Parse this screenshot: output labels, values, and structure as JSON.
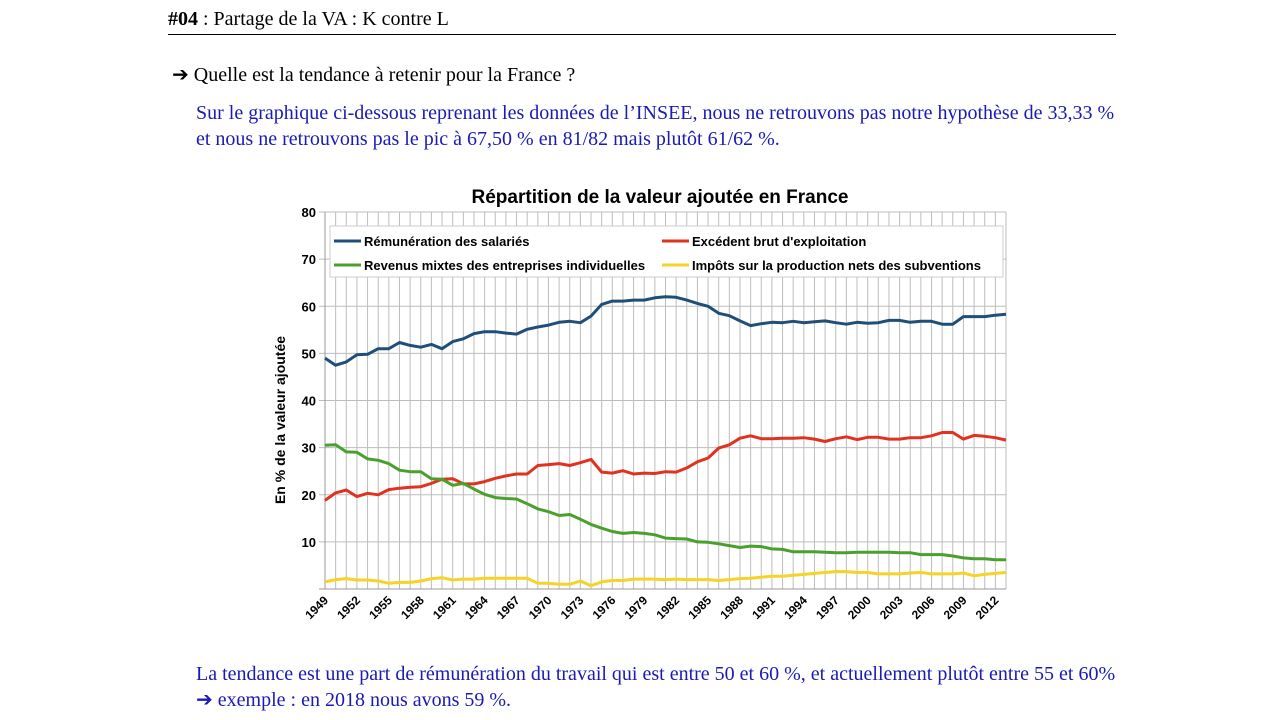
{
  "header": {
    "number": "#04",
    "title": " : Partage de la VA : K contre L"
  },
  "question": {
    "arrow": "➔",
    "text": " Quelle est la tendance à retenir pour la France ?"
  },
  "paragraph1": "Sur le graphique ci-dessous reprenant les données de l’INSEE, nous ne retrouvons pas notre hypothèse de 33,33 % et nous ne retrouvons pas le pic à 67,50 % en 81/82 mais plutôt 61/62 %.",
  "paragraph2": {
    "before": "La tendance est une part de rémunération du travail qui est entre 50 et 60 %, et actuellement plutôt entre 55 et 60% ",
    "arrow": "➔",
    "after": " exemple : en 2018 nous avons 59 %."
  },
  "chart_data": {
    "type": "line",
    "title": "Répartition de la valeur ajoutée en France",
    "xlabel": "",
    "ylabel": "En % de la valeur ajoutée",
    "ylim": [
      0,
      80
    ],
    "yticks": [
      "10",
      "20",
      "30",
      "40",
      "50",
      "60",
      "70",
      "80"
    ],
    "x_start": 1949,
    "x_end": 2013,
    "xtick_labels": [
      "1949",
      "1952",
      "1955",
      "1958",
      "1961",
      "1964",
      "1967",
      "1970",
      "1973",
      "1976",
      "1979",
      "1982",
      "1985",
      "1988",
      "1991",
      "1994",
      "1997",
      "2000",
      "2003",
      "2006",
      "2009",
      "2012"
    ],
    "grid": true,
    "legend_placement": "top",
    "series": [
      {
        "name": "Rémunération des salariés",
        "color": "#1f4e79",
        "values": [
          49,
          47.5,
          48.2,
          49.7,
          49.8,
          51,
          51,
          52.3,
          51.7,
          51.3,
          51.9,
          51,
          52.5,
          53.1,
          54.2,
          54.6,
          54.6,
          54.3,
          54.1,
          55.1,
          55.6,
          56,
          56.6,
          56.8,
          56.5,
          57.9,
          60.4,
          61.1,
          61.1,
          61.3,
          61.3,
          61.8,
          62,
          61.9,
          61.3,
          60.6,
          60,
          58.5,
          58,
          56.9,
          55.9,
          56.3,
          56.6,
          56.5,
          56.8,
          56.5,
          56.7,
          56.9,
          56.5,
          56.2,
          56.6,
          56.4,
          56.5,
          57,
          57,
          56.6,
          56.8,
          56.8,
          56.2,
          56.2,
          57.8,
          57.8,
          57.8,
          58.1,
          58.3
        ]
      },
      {
        "name": "Excédent brut d'exploitation",
        "color": "#e0321e",
        "values": [
          18.8,
          20.4,
          21.0,
          19.6,
          20.3,
          20.0,
          21.1,
          21.4,
          21.6,
          21.7,
          22.4,
          23.3,
          23.4,
          22.3,
          22.3,
          22.8,
          23.5,
          24.0,
          24.4,
          24.4,
          26.2,
          26.4,
          26.6,
          26.2,
          26.8,
          27.5,
          24.8,
          24.6,
          25.1,
          24.4,
          24.6,
          24.5,
          24.9,
          24.8,
          25.7,
          27.0,
          27.8,
          29.9,
          30.6,
          32.0,
          32.5,
          31.9,
          31.9,
          32.0,
          32.0,
          32.1,
          31.8,
          31.3,
          31.9,
          32.3,
          31.7,
          32.2,
          32.2,
          31.8,
          31.8,
          32.1,
          32.1,
          32.5,
          33.2,
          33.2,
          31.8,
          32.6,
          32.4,
          32.1,
          31.6
        ]
      },
      {
        "name": "Revenus mixtes des entreprises individuelles",
        "color": "#4aa02c",
        "values": [
          30.5,
          30.6,
          29.1,
          29.0,
          27.6,
          27.3,
          26.6,
          25.2,
          24.9,
          24.9,
          23.4,
          23.3,
          22.0,
          22.4,
          21.2,
          20.1,
          19.4,
          19.2,
          19.1,
          18.1,
          17.0,
          16.4,
          15.6,
          15.8,
          14.8,
          13.7,
          12.9,
          12.2,
          11.8,
          12.0,
          11.8,
          11.5,
          10.8,
          10.7,
          10.6,
          10.0,
          9.9,
          9.6,
          9.2,
          8.8,
          9.1,
          9.0,
          8.5,
          8.4,
          7.9,
          7.9,
          7.9,
          7.8,
          7.7,
          7.7,
          7.8,
          7.8,
          7.8,
          7.8,
          7.7,
          7.7,
          7.3,
          7.3,
          7.3,
          7.0,
          6.6,
          6.4,
          6.4,
          6.2,
          6.2
        ]
      },
      {
        "name": "Impôts sur la production nets des subventions",
        "color": "#f5d327",
        "values": [
          1.5,
          2.0,
          2.2,
          1.9,
          1.9,
          1.7,
          1.2,
          1.4,
          1.4,
          1.7,
          2.2,
          2.4,
          1.9,
          2.1,
          2.1,
          2.3,
          2.3,
          2.3,
          2.3,
          2.3,
          1.2,
          1.2,
          1.0,
          1.0,
          1.7,
          0.7,
          1.5,
          1.8,
          1.8,
          2.1,
          2.1,
          2.1,
          2.0,
          2.1,
          2.0,
          2.0,
          2.0,
          1.8,
          2.0,
          2.2,
          2.3,
          2.5,
          2.7,
          2.7,
          2.9,
          3.1,
          3.3,
          3.5,
          3.7,
          3.7,
          3.5,
          3.5,
          3.2,
          3.2,
          3.2,
          3.4,
          3.5,
          3.2,
          3.2,
          3.2,
          3.4,
          2.8,
          3.1,
          3.3,
          3.5
        ]
      }
    ]
  }
}
